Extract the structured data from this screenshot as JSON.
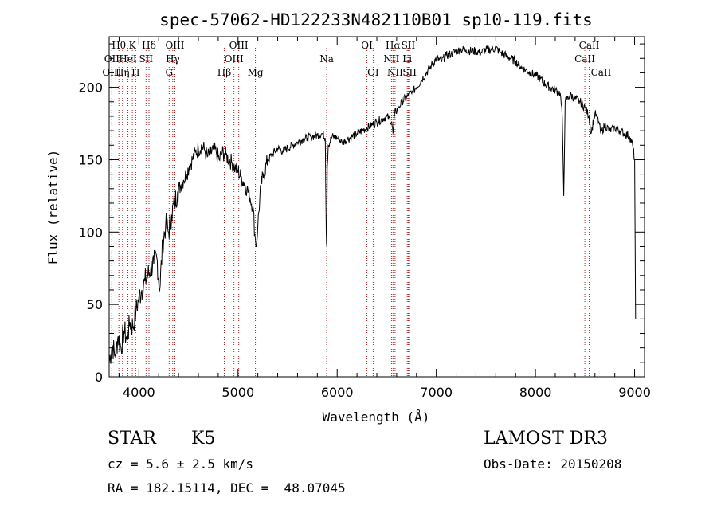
{
  "chart_data": {
    "type": "line",
    "title": "spec-57062-HD122233N482110B01_sp10-119.fits",
    "xlabel": "Wavelength (Å)",
    "ylabel": "Flux (relative)",
    "xlim": [
      3700,
      9100
    ],
    "ylim": [
      0,
      235
    ],
    "x_ticks": [
      4000,
      5000,
      6000,
      7000,
      8000,
      9000
    ],
    "y_ticks": [
      0,
      50,
      100,
      150,
      200
    ],
    "grid": false,
    "series": [
      {
        "x": [
          3700,
          3730,
          3760,
          3790,
          3820,
          3850,
          3880,
          3910,
          3940,
          3970,
          4000,
          4030,
          4060,
          4090,
          4120,
          4150,
          4180,
          4210,
          4240,
          4270,
          4300,
          4330,
          4360,
          4390,
          4420,
          4450,
          4480,
          4510,
          4540,
          4570,
          4600,
          4630,
          4660,
          4690,
          4720,
          4750,
          4780,
          4810,
          4840,
          4860,
          4880,
          4910,
          4940,
          4970,
          5000,
          5030,
          5060,
          5090,
          5120,
          5150,
          5170,
          5185,
          5200,
          5230,
          5260,
          5300,
          5350,
          5400,
          5450,
          5500,
          5550,
          5600,
          5650,
          5700,
          5750,
          5800,
          5850,
          5880,
          5890,
          5895,
          5900,
          5910,
          5950,
          6000,
          6050,
          6100,
          6150,
          6200,
          6250,
          6300,
          6350,
          6400,
          6450,
          6500,
          6550,
          6563,
          6580,
          6620,
          6650,
          6700,
          6750,
          6800,
          6850,
          6900,
          6950,
          7000,
          7050,
          7100,
          7150,
          7200,
          7250,
          7300,
          7350,
          7400,
          7450,
          7500,
          7550,
          7600,
          7650,
          7700,
          7750,
          7800,
          7850,
          7900,
          7950,
          8000,
          8050,
          8100,
          8150,
          8200,
          8250,
          8270,
          8285,
          8300,
          8350,
          8400,
          8450,
          8500,
          8540,
          8560,
          8600,
          8640,
          8660,
          8700,
          8750,
          8800,
          8850,
          8900,
          8950,
          8980,
          9000,
          9010
        ],
        "y": [
          10,
          22,
          15,
          28,
          20,
          32,
          26,
          38,
          34,
          45,
          55,
          60,
          66,
          70,
          75,
          78,
          83,
          60,
          92,
          105,
          100,
          112,
          120,
          128,
          132,
          136,
          140,
          146,
          150,
          155,
          157,
          160,
          157,
          152,
          154,
          157,
          155,
          150,
          155,
          154,
          153,
          150,
          148,
          144,
          142,
          138,
          134,
          130,
          124,
          118,
          98,
          90,
          105,
          132,
          140,
          150,
          154,
          158,
          156,
          158,
          160,
          162,
          164,
          165,
          166,
          167,
          168,
          165,
          100,
          90,
          145,
          160,
          166,
          165,
          162,
          164,
          166,
          168,
          170,
          172,
          174,
          176,
          178,
          180,
          176,
          168,
          182,
          186,
          190,
          193,
          196,
          200,
          205,
          210,
          215,
          220,
          218,
          222,
          223,
          225,
          226,
          226,
          225,
          225,
          224,
          226,
          226,
          227,
          224,
          222,
          220,
          218,
          214,
          212,
          210,
          208,
          206,
          202,
          200,
          198,
          196,
          180,
          125,
          190,
          195,
          192,
          190,
          186,
          180,
          168,
          182,
          176,
          168,
          174,
          170,
          172,
          170,
          168,
          166,
          160,
          150,
          40
        ]
      }
    ],
    "line_markers": [
      {
        "name": "Hθ",
        "x": 3798,
        "row": 0
      },
      {
        "name": "OII",
        "x": 3727,
        "row": 1
      },
      {
        "name": "OIII",
        "x": 3727,
        "row": 2
      },
      {
        "name": "Hη",
        "x": 3835,
        "row": 2
      },
      {
        "name": "K",
        "x": 3934,
        "row": 0
      },
      {
        "name": "HeI",
        "x": 3889,
        "row": 1
      },
      {
        "name": "H",
        "x": 3968,
        "row": 2
      },
      {
        "name": "Hδ",
        "x": 4102,
        "row": 0
      },
      {
        "name": "SII",
        "x": 4072,
        "row": 1
      },
      {
        "name": "OIII",
        "x": 4363,
        "row": 0
      },
      {
        "name": "Hγ",
        "x": 4341,
        "row": 1
      },
      {
        "name": "G",
        "x": 4305,
        "row": 2
      },
      {
        "name": "OIII",
        "x": 5007,
        "row": 0
      },
      {
        "name": "OIII",
        "x": 4959,
        "row": 1
      },
      {
        "name": "Hβ",
        "x": 4861,
        "row": 2
      },
      {
        "name": "Mg",
        "x": 5175,
        "row": 2
      },
      {
        "name": "Na",
        "x": 5894,
        "row": 1
      },
      {
        "name": "OI",
        "x": 6300,
        "row": 0
      },
      {
        "name": "OI",
        "x": 6363,
        "row": 2
      },
      {
        "name": "Hα",
        "x": 6563,
        "row": 0
      },
      {
        "name": "NII",
        "x": 6548,
        "row": 1
      },
      {
        "name": "NII",
        "x": 6584,
        "row": 2
      },
      {
        "name": "SII",
        "x": 6717,
        "row": 0
      },
      {
        "name": "Li",
        "x": 6707,
        "row": 1
      },
      {
        "name": "SII",
        "x": 6731,
        "row": 2
      },
      {
        "name": "CaII",
        "x": 8542,
        "row": 0
      },
      {
        "name": "CaII",
        "x": 8498,
        "row": 1
      },
      {
        "name": "CaII",
        "x": 8662,
        "row": 2
      }
    ]
  },
  "info": {
    "object_class": "STAR",
    "subclass": "K5",
    "survey": "LAMOST DR3",
    "cz": "cz = 5.6 ± 2.5 km/s",
    "obs_date": "Obs-Date: 20150208",
    "coords": "RA = 182.15114, DEC =  48.07045"
  },
  "colors": {
    "spectrum": "#000000",
    "marker_lines": "#b22222"
  }
}
